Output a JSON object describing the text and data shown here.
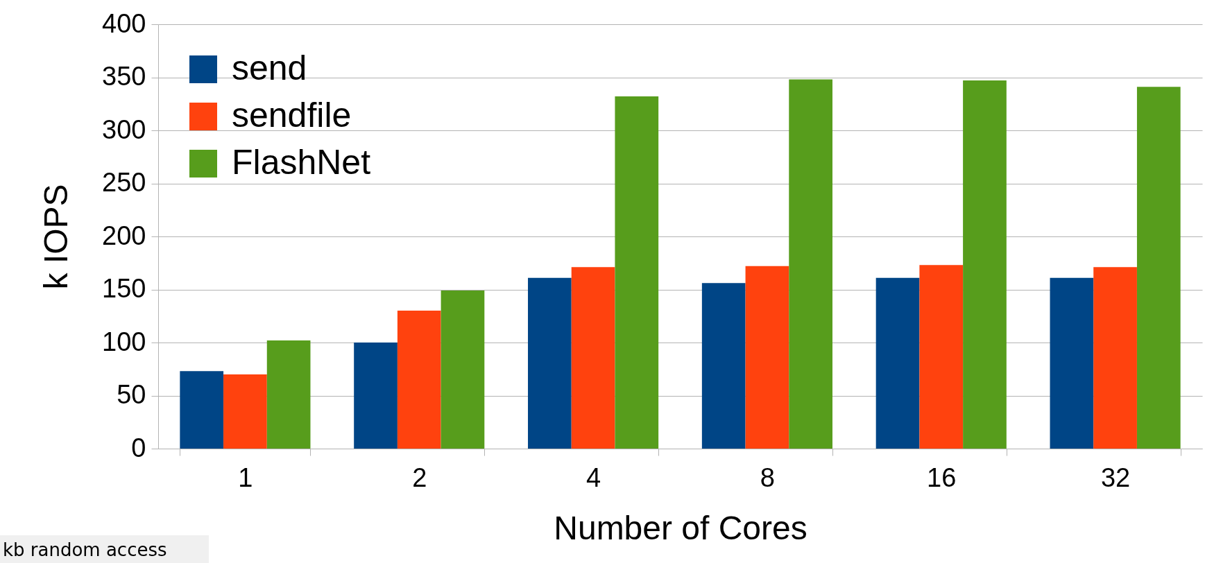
{
  "chart_data": {
    "type": "bar",
    "xlabel": "Number of Cores",
    "ylabel": "k IOPS",
    "categories": [
      "1",
      "2",
      "4",
      "8",
      "16",
      "32"
    ],
    "series": [
      {
        "name": "send",
        "color": "#004586",
        "values": [
          73,
          100,
          161,
          156,
          161,
          161
        ]
      },
      {
        "name": "sendfile",
        "color": "#ff420e",
        "values": [
          70,
          130,
          171,
          172,
          173,
          171
        ]
      },
      {
        "name": "FlashNet",
        "color": "#579d1c",
        "values": [
          102,
          149,
          332,
          348,
          347,
          341
        ]
      }
    ],
    "ylim": [
      0,
      400
    ],
    "yticks": [
      0,
      50,
      100,
      150,
      200,
      250,
      300,
      350,
      400
    ],
    "grid": "y",
    "legend": "top left",
    "annotations": [
      "kb random access"
    ]
  }
}
